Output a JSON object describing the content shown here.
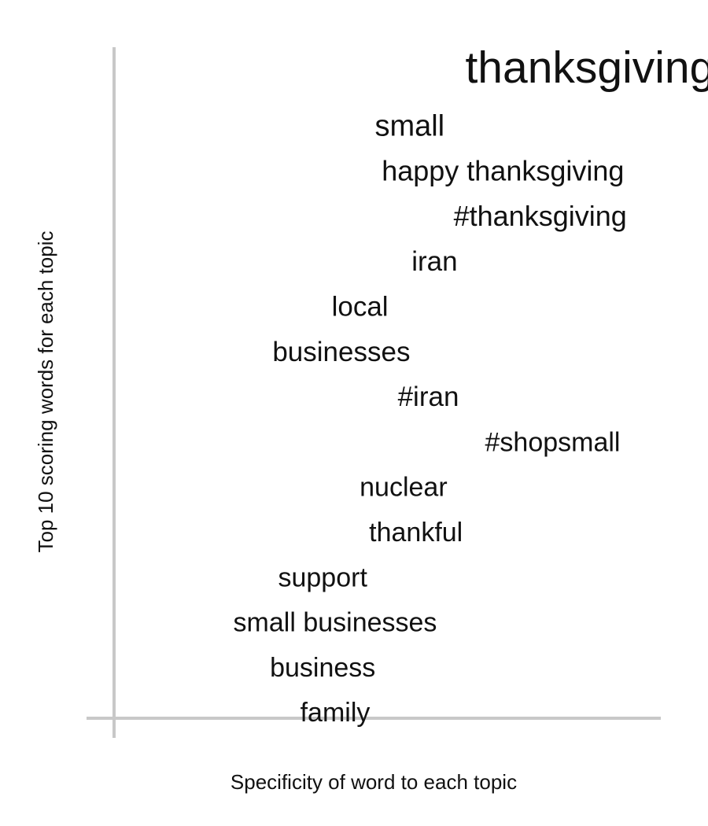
{
  "chart_data": {
    "type": "scatter",
    "title": "",
    "xlabel": "Specificity of word to each topic",
    "ylabel": "Top 10 scoring words for each topic",
    "grid": false,
    "legend": "none",
    "axis_color": "#c8c8c8",
    "text_color": "#111111",
    "xlim": [
      0,
      1
    ],
    "words": [
      {
        "label": "thanksgiving",
        "specificity": 0.81,
        "rank": 1,
        "weight": 1.0
      },
      {
        "label": "small",
        "specificity": 0.52,
        "rank": 2,
        "weight": 0.72
      },
      {
        "label": "happy thanksgiving",
        "specificity": 0.67,
        "rank": 3,
        "weight": 0.64
      },
      {
        "label": "#thanksgiving",
        "specificity": 0.73,
        "rank": 4,
        "weight": 0.6
      },
      {
        "label": "iran",
        "specificity": 0.56,
        "rank": 5,
        "weight": 0.58
      },
      {
        "label": "local",
        "specificity": 0.44,
        "rank": 6,
        "weight": 0.56
      },
      {
        "label": "businesses",
        "specificity": 0.41,
        "rank": 7,
        "weight": 0.55
      },
      {
        "label": "#iran",
        "specificity": 0.55,
        "rank": 8,
        "weight": 0.55
      },
      {
        "label": "#shopsmall",
        "specificity": 0.75,
        "rank": 9,
        "weight": 0.53
      },
      {
        "label": "nuclear",
        "specificity": 0.51,
        "rank": 10,
        "weight": 0.52
      },
      {
        "label": "thankful",
        "specificity": 0.53,
        "rank": 11,
        "weight": 0.51
      },
      {
        "label": "support",
        "specificity": 0.38,
        "rank": 12,
        "weight": 0.51
      },
      {
        "label": "small businesses",
        "specificity": 0.4,
        "rank": 13,
        "weight": 0.5
      },
      {
        "label": "business",
        "specificity": 0.38,
        "rank": 14,
        "weight": 0.5
      },
      {
        "label": "family",
        "specificity": 0.4,
        "rank": 15,
        "weight": 0.5
      }
    ]
  }
}
